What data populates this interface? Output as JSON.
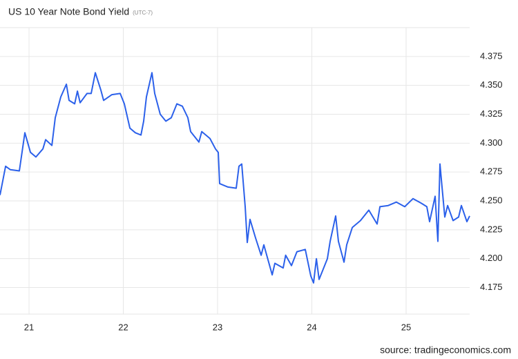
{
  "chart_data": {
    "type": "line",
    "title": "US 10 Year Note Bond Yield",
    "subtitle": "(UTC-7)",
    "source": "source: tradingeconomics.com",
    "x": [
      20.692,
      20.751,
      20.802,
      20.897,
      20.956,
      21.015,
      21.073,
      21.147,
      21.176,
      21.242,
      21.278,
      21.337,
      21.396,
      21.425,
      21.484,
      21.513,
      21.542,
      21.615,
      21.659,
      21.703,
      21.762,
      21.791,
      21.879,
      21.967,
      22.011,
      22.07,
      22.128,
      22.187,
      22.216,
      22.245,
      22.304,
      22.333,
      22.392,
      22.451,
      22.509,
      22.568,
      22.626,
      22.685,
      22.714,
      22.802,
      22.832,
      22.919,
      22.978,
      23.007,
      23.022,
      23.11,
      23.198,
      23.227,
      23.256,
      23.293,
      23.315,
      23.344,
      23.403,
      23.462,
      23.491,
      23.579,
      23.608,
      23.696,
      23.722,
      23.784,
      23.842,
      23.93,
      23.989,
      24.018,
      24.048,
      24.077,
      24.165,
      24.194,
      24.253,
      24.282,
      24.341,
      24.37,
      24.429,
      24.516,
      24.604,
      24.692,
      24.722,
      24.81,
      24.897,
      24.985,
      25.073,
      25.161,
      25.22,
      25.249,
      25.308,
      25.337,
      25.359,
      25.381,
      25.41,
      25.44,
      25.498,
      25.557,
      25.586,
      25.645,
      25.674
    ],
    "series": [
      {
        "name": "US 10 Year Note Bond Yield",
        "color": "#2b60ea",
        "values": [
          4.255,
          4.28,
          4.277,
          4.276,
          4.309,
          4.292,
          4.288,
          4.295,
          4.303,
          4.298,
          4.322,
          4.34,
          4.351,
          4.337,
          4.334,
          4.345,
          4.335,
          4.343,
          4.343,
          4.361,
          4.346,
          4.337,
          4.342,
          4.343,
          4.334,
          4.313,
          4.309,
          4.307,
          4.319,
          4.34,
          4.361,
          4.343,
          4.325,
          4.319,
          4.322,
          4.334,
          4.332,
          4.322,
          4.31,
          4.301,
          4.31,
          4.304,
          4.295,
          4.292,
          4.265,
          4.262,
          4.261,
          4.28,
          4.282,
          4.245,
          4.214,
          4.234,
          4.218,
          4.203,
          4.212,
          4.186,
          4.196,
          4.192,
          4.203,
          4.194,
          4.206,
          4.208,
          4.185,
          4.179,
          4.2,
          4.182,
          4.2,
          4.215,
          4.237,
          4.215,
          4.197,
          4.212,
          4.227,
          4.233,
          4.242,
          4.23,
          4.245,
          4.246,
          4.249,
          4.245,
          4.252,
          4.248,
          4.245,
          4.232,
          4.254,
          4.215,
          4.282,
          4.262,
          4.236,
          4.246,
          4.233,
          4.236,
          4.246,
          4.232,
          4.237
        ]
      }
    ],
    "xlim": [
      20.692,
      25.674
    ],
    "xticks": [
      21,
      22,
      23,
      24,
      25
    ],
    "ylim": [
      4.152,
      4.4
    ],
    "yticks": [
      4.175,
      {
        "value": 4.2,
        "label": "4.200"
      },
      4.225,
      {
        "value": 4.25,
        "label": "4.250"
      },
      4.275,
      {
        "value": 4.3,
        "label": "4.300"
      },
      4.325,
      {
        "value": 4.35,
        "label": "4.350"
      },
      4.375
    ],
    "grid": true
  }
}
